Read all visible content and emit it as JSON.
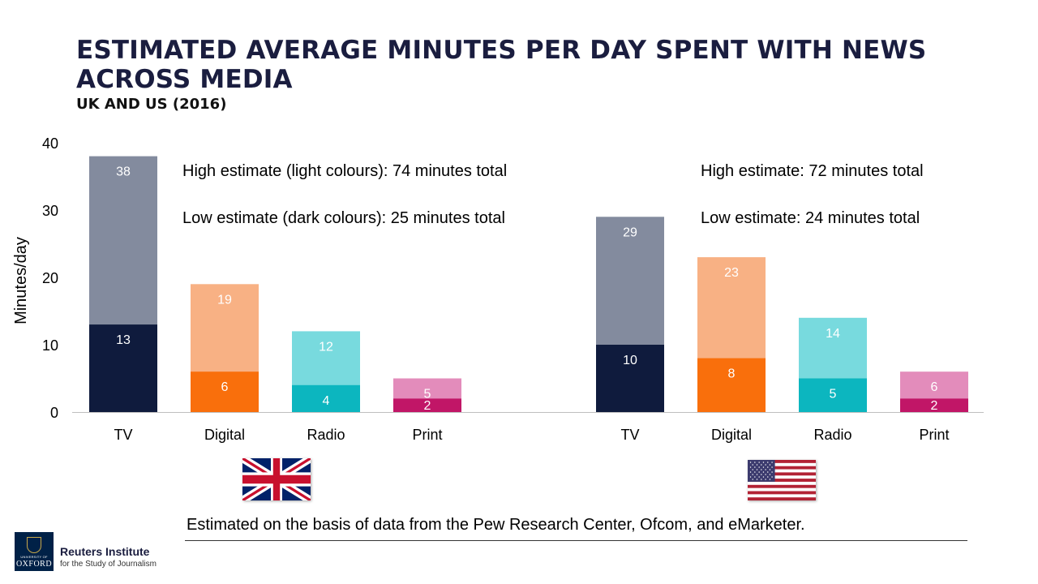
{
  "title": "ESTIMATED AVERAGE MINUTES PER DAY SPENT WITH NEWS ACROSS MEDIA",
  "subtitle": "UK AND US (2016)",
  "chart_data": {
    "type": "bar",
    "stacking": "overlay",
    "ylabel": "Minutes/day",
    "ylim": [
      0,
      40
    ],
    "yticks": [
      0,
      10,
      20,
      30,
      40
    ],
    "grid": false,
    "groups": [
      {
        "country": "UK",
        "categories": [
          "TV",
          "Digital",
          "Radio",
          "Print"
        ],
        "high": [
          38,
          19,
          12,
          5
        ],
        "low": [
          13,
          6,
          4,
          2
        ],
        "annotations": [
          "High estimate (light colours): 74 minutes total",
          "Low estimate (dark colours): 25 minutes total"
        ]
      },
      {
        "country": "US",
        "categories": [
          "TV",
          "Digital",
          "Radio",
          "Print"
        ],
        "high": [
          29,
          23,
          14,
          6
        ],
        "low": [
          10,
          8,
          5,
          2
        ],
        "annotations": [
          "High estimate: 72 minutes total",
          "Low estimate: 24 minutes total"
        ]
      }
    ],
    "colors": {
      "TV": {
        "high": "#838b9e",
        "low": "#0f1b3d"
      },
      "Digital": {
        "high": "#f8b184",
        "low": "#f96f0c"
      },
      "Radio": {
        "high": "#78dade",
        "low": "#0cb6bf"
      },
      "Print": {
        "high": "#e38cbb",
        "low": "#c11667"
      }
    }
  },
  "footnote": "Estimated on the basis of data from the Pew Research Center, Ofcom, and eMarketer.",
  "logo": {
    "university_small": "UNIVERSITY OF",
    "university": "OXFORD",
    "name": "Reuters Institute",
    "tagline": "for the Study of Journalism"
  }
}
